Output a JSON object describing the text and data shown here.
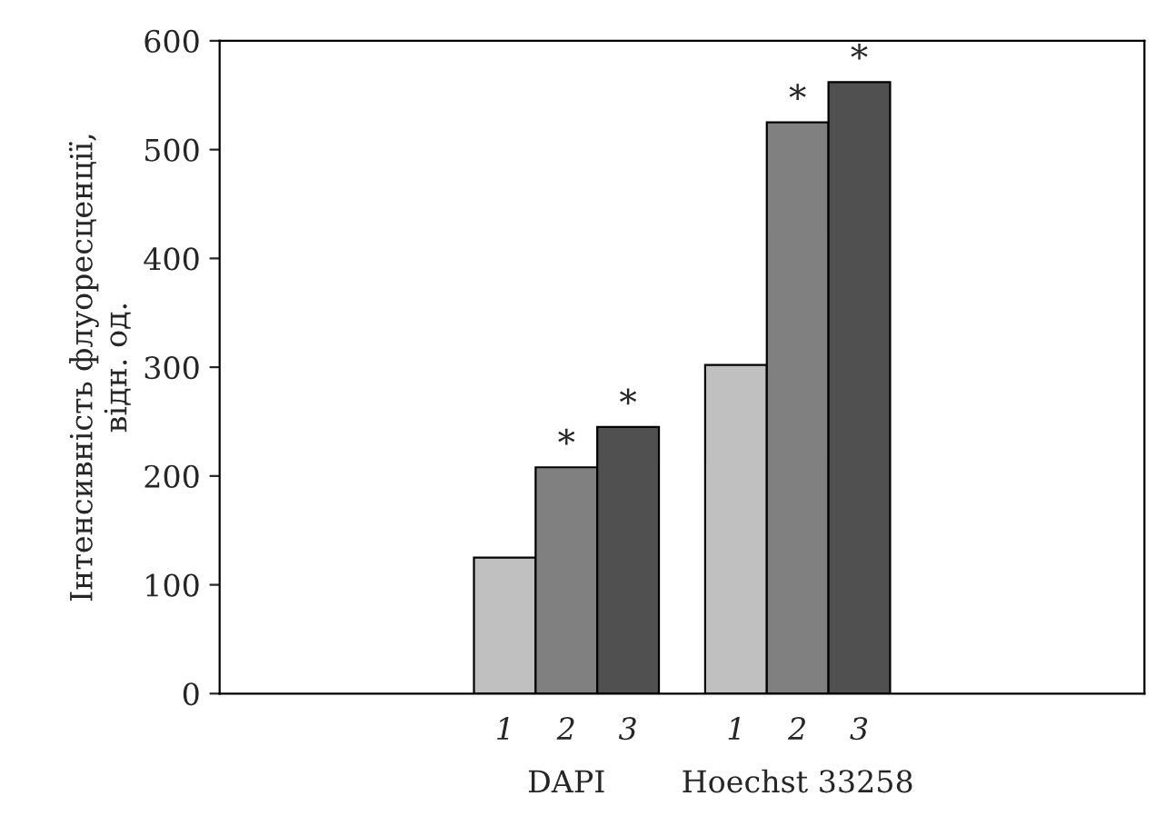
{
  "chart_data": {
    "type": "bar",
    "ylabel": "Інтенсивність флуоресценції,\nвідн. од.",
    "categories": [
      null,
      "DAPI",
      "Hoechst 33258",
      null
    ],
    "series": [
      {
        "name": "1",
        "color": "#c0c0c0",
        "values": [
          null,
          125,
          302,
          null
        ]
      },
      {
        "name": "2",
        "color": "#808080",
        "values": [
          null,
          208,
          525,
          null
        ],
        "value_labels": [
          null,
          "*",
          "*",
          null
        ]
      },
      {
        "name": "3",
        "color": "#505050",
        "values": [
          null,
          245,
          562,
          null
        ],
        "value_labels": [
          null,
          "*",
          "*",
          null
        ]
      }
    ],
    "ylim": [
      0,
      600
    ],
    "yticks": [
      0,
      100,
      200,
      300,
      400,
      500,
      600
    ],
    "grid": false,
    "legend": false
  }
}
